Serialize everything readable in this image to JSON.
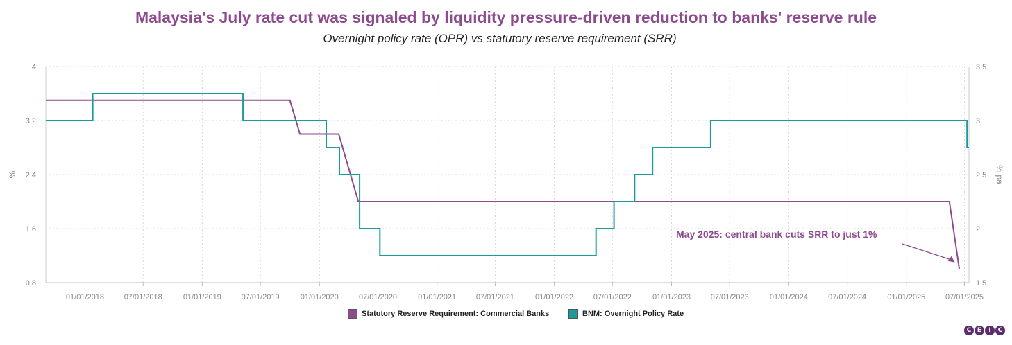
{
  "chart_data": {
    "type": "line",
    "title": "Malaysia's July rate cut was signaled by liquidity pressure-driven reduction to banks' reserve rule",
    "subtitle": "Overnight policy rate (OPR) vs statutory reserve requirement (SRR)",
    "x_ticks": [
      "01/01/2018",
      "07/01/2018",
      "01/01/2019",
      "07/01/2019",
      "01/01/2020",
      "07/01/2020",
      "01/01/2021",
      "07/01/2021",
      "01/01/2022",
      "07/01/2022",
      "01/01/2023",
      "07/01/2023",
      "01/01/2024",
      "07/01/2024",
      "01/01/2025",
      "07/01/2025"
    ],
    "x_range": [
      "2017-09-01",
      "2025-07-15"
    ],
    "y_left": {
      "label": "%",
      "ylim": [
        0.8,
        4
      ],
      "ticks": [
        "4",
        "3.2",
        "2.4",
        "1.6",
        "0.8"
      ],
      "tick_values": [
        4,
        3.2,
        2.4,
        1.6,
        0.8
      ]
    },
    "y_right": {
      "label": "% pa",
      "ylim": [
        1.5,
        3.5
      ],
      "ticks": [
        "3.5",
        "3",
        "2.5",
        "2",
        "1.5"
      ],
      "tick_values": [
        3.5,
        3,
        2.5,
        2,
        1.5
      ]
    },
    "grid": true,
    "legend_position": "bottom",
    "series": [
      {
        "name": "Statutory Reserve Requirement: Commercial Banks",
        "axis": "left",
        "color": "#8c4a8f",
        "points": [
          [
            "2017-09-01",
            3.5
          ],
          [
            "2019-10-01",
            3.5
          ],
          [
            "2019-11-01",
            3.0
          ],
          [
            "2020-03-01",
            3.0
          ],
          [
            "2020-05-01",
            2.0
          ],
          [
            "2025-05-15",
            2.0
          ],
          [
            "2025-06-15",
            1.0
          ]
        ]
      },
      {
        "name": "BNM: Overnight Policy Rate",
        "axis": "right",
        "color": "#1a9a9a",
        "points": [
          [
            "2017-09-01",
            3.0
          ],
          [
            "2018-01-25",
            3.0
          ],
          [
            "2018-01-25",
            3.25
          ],
          [
            "2019-05-08",
            3.25
          ],
          [
            "2019-05-08",
            3.0
          ],
          [
            "2020-01-22",
            3.0
          ],
          [
            "2020-01-22",
            2.75
          ],
          [
            "2020-03-03",
            2.75
          ],
          [
            "2020-03-03",
            2.5
          ],
          [
            "2020-05-05",
            2.5
          ],
          [
            "2020-05-05",
            2.0
          ],
          [
            "2020-07-07",
            2.0
          ],
          [
            "2020-07-07",
            1.75
          ],
          [
            "2022-05-11",
            1.75
          ],
          [
            "2022-05-11",
            2.0
          ],
          [
            "2022-07-06",
            2.0
          ],
          [
            "2022-07-06",
            2.25
          ],
          [
            "2022-09-08",
            2.25
          ],
          [
            "2022-09-08",
            2.5
          ],
          [
            "2022-11-03",
            2.5
          ],
          [
            "2022-11-03",
            2.75
          ],
          [
            "2023-05-03",
            2.75
          ],
          [
            "2023-05-03",
            3.0
          ],
          [
            "2025-07-09",
            3.0
          ],
          [
            "2025-07-09",
            2.75
          ],
          [
            "2025-07-15",
            2.75
          ]
        ]
      }
    ],
    "annotation": {
      "text": "May 2025: central bank cuts SRR to just 1%",
      "color": "#8c4a8f",
      "arrow_to": [
        "2025-06-01",
        1.1
      ]
    }
  },
  "legend": {
    "srr": "Statutory Reserve Requirement: Commercial Banks",
    "opr": "BNM: Overnight Policy Rate"
  },
  "logo_letters": [
    "C",
    "E",
    "I",
    "C"
  ]
}
